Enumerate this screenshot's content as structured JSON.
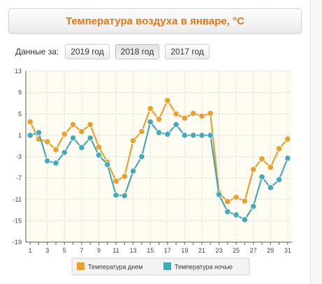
{
  "header": {
    "title": "Температура воздуха в январе, °C"
  },
  "period": {
    "label": "Данные за:",
    "years": [
      {
        "label": "2019 год",
        "active": false
      },
      {
        "label": "2018 год",
        "active": true
      },
      {
        "label": "2017 год",
        "active": false
      }
    ]
  },
  "chart_data": {
    "type": "line",
    "title": "Температура воздуха в январе, °C",
    "xlabel": "",
    "ylabel": "",
    "x": [
      1,
      2,
      3,
      4,
      5,
      6,
      7,
      8,
      9,
      10,
      11,
      12,
      13,
      14,
      15,
      16,
      17,
      18,
      19,
      20,
      21,
      22,
      23,
      24,
      25,
      26,
      27,
      28,
      29,
      30,
      31
    ],
    "x_ticks": [
      1,
      3,
      5,
      7,
      9,
      11,
      13,
      15,
      17,
      19,
      21,
      23,
      25,
      27,
      29,
      31
    ],
    "y_ticks": [
      13,
      9,
      5,
      1,
      -3,
      -7,
      -11,
      -15,
      -19
    ],
    "ylim": [
      -19,
      13
    ],
    "grid": true,
    "legend_position": "bottom-center",
    "series": [
      {
        "name": "Температура днем",
        "color": "#e8a02e",
        "values": [
          3.5,
          0.3,
          -0.2,
          -1.7,
          1.2,
          3,
          1.7,
          3,
          -1.2,
          -4,
          -7.6,
          -6.7,
          0,
          1.7,
          6,
          4,
          7.5,
          5,
          4.2,
          5.1,
          4.6,
          5.1,
          -9.8,
          -11.4,
          -10.6,
          -11.3,
          -5.4,
          -3.4,
          -5,
          -1.5,
          0.3
        ]
      },
      {
        "name": "Температура ночью",
        "color": "#46a9b6",
        "values": [
          1,
          1.5,
          -3.8,
          -4.2,
          -2.2,
          0.5,
          -1.3,
          0.5,
          -2.7,
          -4.5,
          -10.2,
          -10.3,
          -5.7,
          -3,
          3.5,
          1.5,
          1.2,
          3,
          1,
          1,
          1,
          1,
          -10.1,
          -13.3,
          -13.9,
          -14.8,
          -12.3,
          -6.8,
          -8.8,
          -7.3,
          -3.3
        ]
      }
    ]
  }
}
